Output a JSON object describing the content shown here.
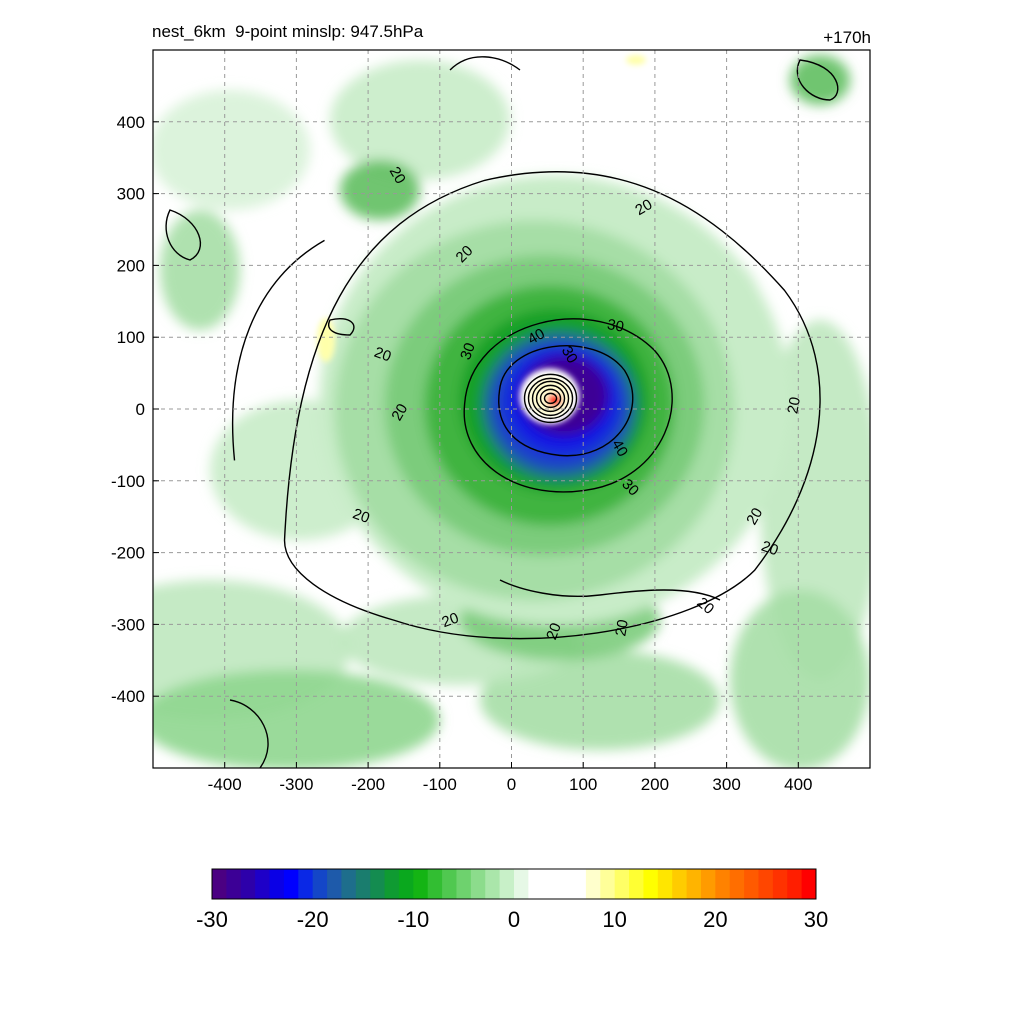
{
  "chart_data": {
    "type": "heatmap",
    "title_left": "nest_6km  9-point minslp: 947.5hPa",
    "title_right": "+170h",
    "x_range": [
      -500,
      500
    ],
    "y_range": [
      -500,
      500
    ],
    "x_ticks": [
      -400,
      -300,
      -200,
      -100,
      0,
      100,
      200,
      300,
      400
    ],
    "y_ticks": [
      400,
      300,
      200,
      100,
      0,
      -100,
      -200,
      -300,
      -400
    ],
    "grid": true,
    "colorbar": {
      "range": [
        -30,
        30
      ],
      "ticks": [
        -30,
        -20,
        -10,
        0,
        10,
        20,
        30
      ],
      "colors": [
        "#4b0082",
        "#3c0096",
        "#2d00aa",
        "#1e00c8",
        "#0a00e6",
        "#0000ff",
        "#0a28e6",
        "#1446c8",
        "#1e5aaa",
        "#1e6e8c",
        "#1a7d6e",
        "#148c50",
        "#0f9b32",
        "#0aa81e",
        "#14b414",
        "#32be32",
        "#50c850",
        "#6ed26e",
        "#8cdc8c",
        "#aae6aa",
        "#c8f0c8",
        "#e6f8e6",
        "#ffffff",
        "#ffffff",
        "#ffffff",
        "#ffffff",
        "#ffffcc",
        "#ffff99",
        "#ffff66",
        "#ffff33",
        "#ffff00",
        "#ffe600",
        "#ffcc00",
        "#ffb400",
        "#ff9b00",
        "#ff8200",
        "#ff6e00",
        "#ff5a00",
        "#ff4600",
        "#ff3200",
        "#ff1e00",
        "#ff0000"
      ]
    },
    "storm_center": [
      60,
      12
    ],
    "contour_labels": [
      {
        "text": "20",
        "x": -160,
        "y": 325,
        "rot": 60
      },
      {
        "text": "20",
        "x": 185,
        "y": 280,
        "rot": -30
      },
      {
        "text": "20",
        "x": -65,
        "y": 215,
        "rot": -45
      },
      {
        "text": "20",
        "x": -180,
        "y": 75,
        "rot": 20
      },
      {
        "text": "20",
        "x": -155,
        "y": -5,
        "rot": -60
      },
      {
        "text": "30",
        "x": -60,
        "y": 80,
        "rot": -70
      },
      {
        "text": "40",
        "x": 35,
        "y": 100,
        "rot": -30
      },
      {
        "text": "30",
        "x": 145,
        "y": 115,
        "rot": 10
      },
      {
        "text": "30",
        "x": 80,
        "y": 75,
        "rot": 60
      },
      {
        "text": "40",
        "x": 150,
        "y": -55,
        "rot": 60
      },
      {
        "text": "30",
        "x": 165,
        "y": -110,
        "rot": 45
      },
      {
        "text": "20",
        "x": 395,
        "y": 5,
        "rot": -80
      },
      {
        "text": "20",
        "x": -210,
        "y": -150,
        "rot": 20
      },
      {
        "text": "20",
        "x": 340,
        "y": -150,
        "rot": -60
      },
      {
        "text": "20",
        "x": 360,
        "y": -195,
        "rot": 20
      },
      {
        "text": "20",
        "x": 270,
        "y": -275,
        "rot": 40
      },
      {
        "text": "20",
        "x": 155,
        "y": -305,
        "rot": -80
      },
      {
        "text": "20",
        "x": 60,
        "y": -310,
        "rot": -70
      },
      {
        "text": "20",
        "x": -85,
        "y": -295,
        "rot": -20
      }
    ]
  }
}
